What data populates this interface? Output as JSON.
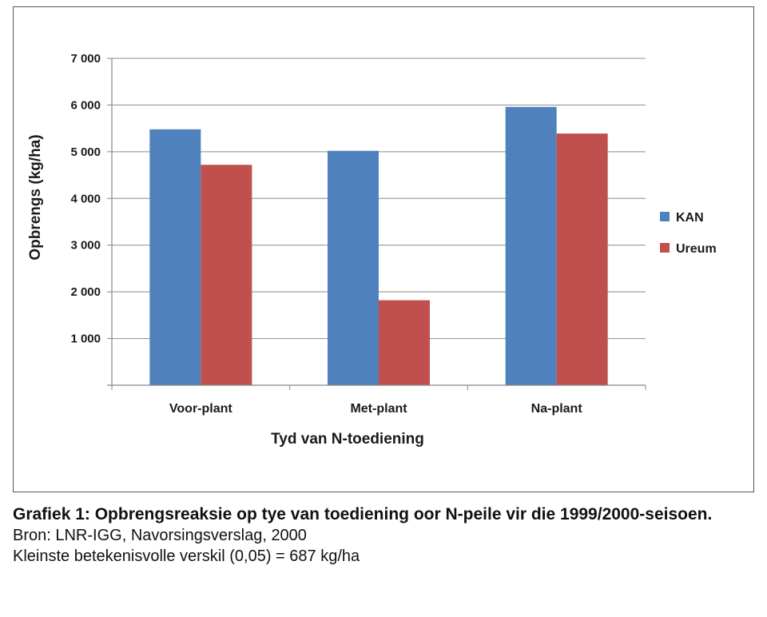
{
  "chart_data": {
    "type": "bar",
    "categories": [
      "Voor-plant",
      "Met-plant",
      "Na-plant"
    ],
    "series": [
      {
        "name": "KAN",
        "values": [
          5480,
          5020,
          5960
        ],
        "color": "#4F81BD"
      },
      {
        "name": "Ureum",
        "values": [
          4720,
          1820,
          5390
        ],
        "color": "#C0504D"
      }
    ],
    "title": "",
    "xlabel": "Tyd van N-toediening",
    "ylabel": "Opbrengs (kg/ha)",
    "ylim": [
      0,
      7000
    ],
    "yticks": [
      1000,
      2000,
      3000,
      4000,
      5000,
      6000,
      7000
    ],
    "ytick_labels": [
      "1 000",
      "2 000",
      "3 000",
      "4 000",
      "5 000",
      "6 000",
      "7 000"
    ],
    "grid": true,
    "legend": "right"
  },
  "caption": {
    "title": "Grafiek 1: Opbrengsreaksie op tye van toediening oor N-peile vir die 1999/2000-seisoen.",
    "source": "Bron: LNR-IGG, Navorsingsverslag, 2000",
    "note": "Kleinste betekenisvolle verskil (0,05) = 687 kg/ha"
  }
}
